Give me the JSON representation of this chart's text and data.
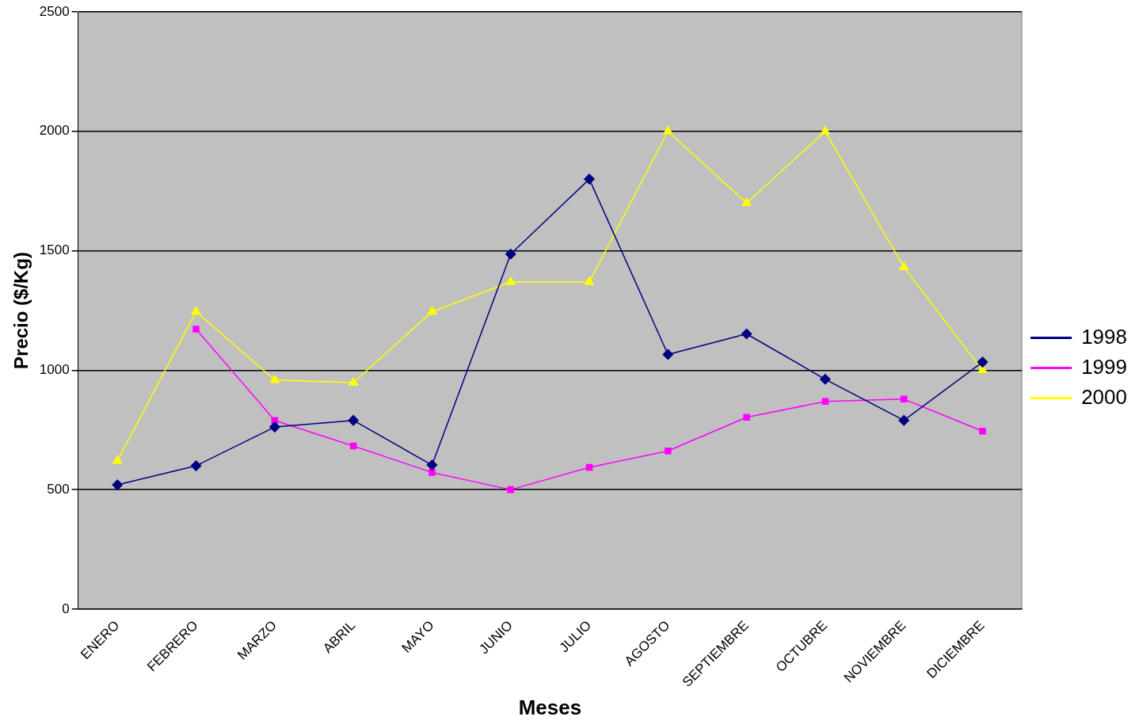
{
  "chart_data": {
    "type": "line",
    "xlabel": "Meses",
    "ylabel": "Precio ($/Kg)",
    "categories": [
      "ENERO",
      "FEBRERO",
      "MARZO",
      "ABRIL",
      "MAYO",
      "JUNIO",
      "JULIO",
      "AGOSTO",
      "SEPTIEMBRE",
      "OCTUBRE",
      "NOVIEMBRE",
      "DICIEMBRE"
    ],
    "series": [
      {
        "name": "1998",
        "color": "#000080",
        "marker": "diamond",
        "values": [
          520,
          600,
          762,
          790,
          603,
          1486,
          1800,
          1066,
          1152,
          962,
          790,
          1034
        ]
      },
      {
        "name": "1999",
        "color": "#ff00ff",
        "marker": "square",
        "values": [
          null,
          1172,
          790,
          683,
          572,
          500,
          593,
          662,
          803,
          869,
          879,
          745
        ]
      },
      {
        "name": "2000",
        "color": "#ffff00",
        "marker": "triangle",
        "values": [
          621,
          1245,
          959,
          948,
          1245,
          1369,
          1369,
          2000,
          1700,
          2000,
          1431,
          1000
        ]
      }
    ],
    "ylim": [
      0,
      2500
    ],
    "yticks": [
      0,
      500,
      1000,
      1500,
      2000,
      2500
    ],
    "grid": "y",
    "legend": "right",
    "line_style": "solid"
  }
}
